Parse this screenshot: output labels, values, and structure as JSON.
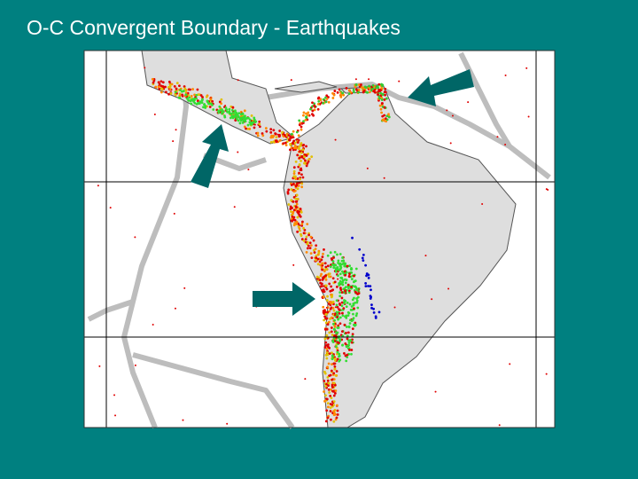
{
  "title": "O-C Convergent Boundary - Earthquakes"
}
